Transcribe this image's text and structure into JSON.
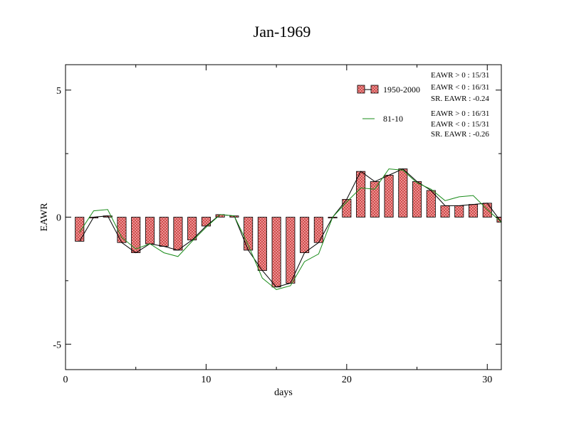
{
  "chart_data": {
    "type": "bar",
    "title": "Jan-1969",
    "xlabel": "days",
    "ylabel": "EAWR",
    "xlim": [
      0,
      31
    ],
    "ylim": [
      -6,
      6
    ],
    "xticks": [
      0,
      10,
      20,
      30
    ],
    "yticks": [
      -5,
      0,
      5
    ],
    "grid": false,
    "legend_position": "top-right",
    "x": [
      1,
      2,
      3,
      4,
      5,
      6,
      7,
      8,
      9,
      10,
      11,
      12,
      13,
      14,
      15,
      16,
      17,
      18,
      19,
      20,
      21,
      22,
      23,
      24,
      25,
      26,
      27,
      28,
      29,
      30,
      31
    ],
    "series": [
      {
        "name": "1950-2000",
        "kind": "bar",
        "color": "#e06b6b",
        "values": [
          -0.95,
          0.0,
          0.05,
          -1.0,
          -1.4,
          -1.05,
          -1.15,
          -1.3,
          -0.9,
          -0.35,
          0.1,
          0.05,
          -1.3,
          -2.1,
          -2.75,
          -2.6,
          -1.4,
          -1.0,
          0.0,
          0.7,
          1.8,
          1.4,
          1.65,
          1.9,
          1.4,
          1.05,
          0.45,
          0.45,
          0.5,
          0.55,
          -0.2
        ]
      },
      {
        "name": "",
        "kind": "line",
        "color": "#000000",
        "values": [
          -0.95,
          0.0,
          0.05,
          -1.0,
          -1.4,
          -1.05,
          -1.15,
          -1.3,
          -0.9,
          -0.35,
          0.1,
          0.05,
          -1.3,
          -2.1,
          -2.75,
          -2.6,
          -1.4,
          -1.0,
          0.0,
          0.7,
          1.8,
          1.4,
          1.65,
          1.9,
          1.4,
          1.05,
          0.45,
          0.45,
          0.5,
          0.55,
          -0.2
        ]
      },
      {
        "name": "81-10",
        "kind": "line",
        "color": "#1a8c1a",
        "values": [
          -0.6,
          0.25,
          0.3,
          -0.8,
          -1.25,
          -1.05,
          -1.4,
          -1.55,
          -0.95,
          -0.4,
          0.1,
          0.05,
          -1.1,
          -2.4,
          -2.85,
          -2.7,
          -1.75,
          -1.45,
          0.0,
          0.6,
          1.15,
          1.1,
          1.9,
          1.85,
          1.35,
          1.1,
          0.65,
          0.8,
          0.85,
          0.3,
          -0.2
        ]
      }
    ],
    "stats": {
      "bars": [
        "EAWR > 0 : 15/31",
        "EAWR < 0 : 16/31",
        "SR. EAWR : -0.24"
      ],
      "line": [
        "EAWR > 0 : 16/31",
        "EAWR < 0 : 15/31",
        "SR. EAWR : -0.26"
      ]
    }
  }
}
